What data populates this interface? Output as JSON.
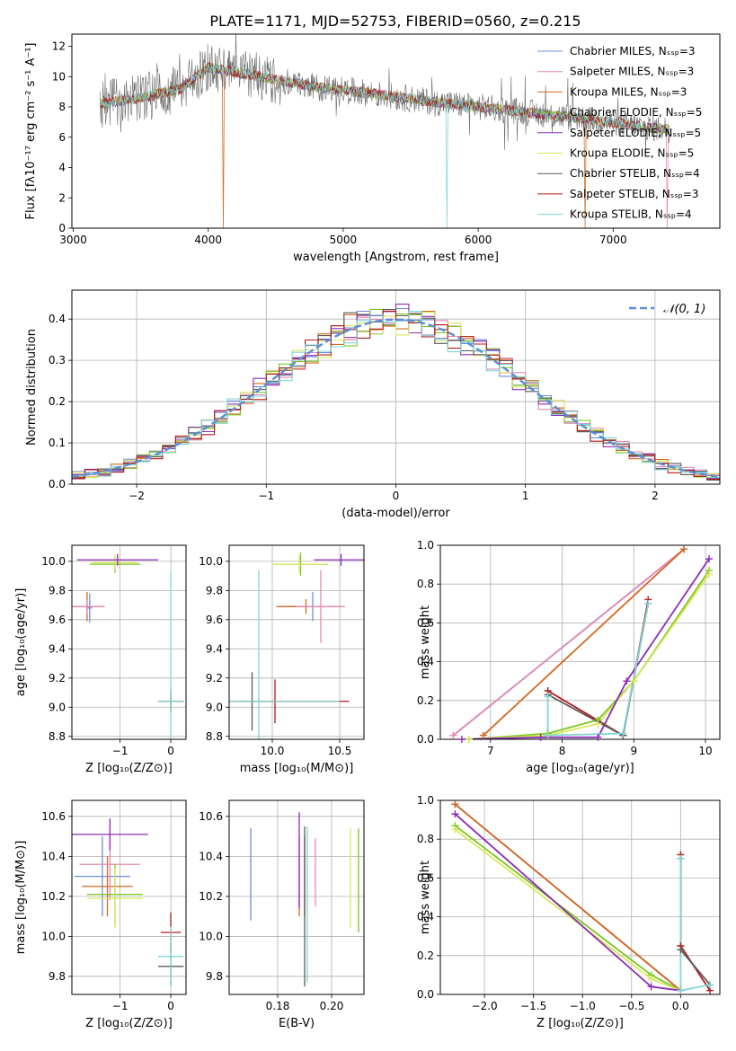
{
  "figure": {
    "title": "PLATE=1171, MJD=52753, FIBERID=0560, z=0.215"
  },
  "colors": {
    "chabrier_miles": "#6b8fe0",
    "salpeter_miles": "#e48ab6",
    "kroupa_miles": "#d2691e",
    "chabrier_elodie": "#7cc623",
    "salpeter_elodie": "#8e2cb5",
    "kroupa_elodie": "#d9e85c",
    "chabrier_stelib": "#5c5c5c",
    "salpeter_stelib": "#b01a1a",
    "kroupa_stelib": "#7fd6d6",
    "normal_curve": "#5b8fd6",
    "grid": "#b0b0b0"
  },
  "chart_data": [
    {
      "id": "spectrum",
      "type": "line",
      "xlabel": "wavelength [Angstrom, rest frame]",
      "ylabel": "Flux [fλ10⁻¹⁷ erg cm⁻² s⁻¹ A⁻¹]",
      "xlim": [
        2990,
        7790
      ],
      "ylim": [
        0,
        12.8
      ],
      "xticks": [
        3000,
        4000,
        5000,
        6000,
        7000
      ],
      "yticks": [
        0,
        2,
        4,
        6,
        8,
        10,
        12
      ],
      "grid": false,
      "legend_position": "top-right",
      "data_range": [
        3200,
        7420
      ],
      "continuum": [
        [
          3200,
          8.2
        ],
        [
          3500,
          8.6
        ],
        [
          3800,
          9.2
        ],
        [
          4000,
          10.6
        ],
        [
          4200,
          10.3
        ],
        [
          4500,
          9.8
        ],
        [
          4800,
          9.3
        ],
        [
          5200,
          8.9
        ],
        [
          5600,
          8.4
        ],
        [
          6000,
          8.0
        ],
        [
          6400,
          7.6
        ],
        [
          6800,
          7.2
        ],
        [
          7200,
          6.7
        ],
        [
          7420,
          6.5
        ]
      ],
      "series": [
        {
          "name": "Chabrier MILES, Nₛₛₚ=3",
          "color_key": "chabrier_miles",
          "drops": []
        },
        {
          "name": "Salpeter MILES, Nₛₛₚ=3",
          "color_key": "salpeter_miles",
          "drops": [
            3540,
            7400
          ]
        },
        {
          "name": "Kroupa MILES, Nₛₛₚ=3",
          "color_key": "kroupa_miles",
          "drops": [
            3540,
            4110,
            6790
          ]
        },
        {
          "name": "Chabrier ELODIE, Nₛₛₚ=5",
          "color_key": "chabrier_elodie",
          "drops": []
        },
        {
          "name": "Salpeter ELODIE, Nₛₛₚ=5",
          "color_key": "salpeter_elodie",
          "drops": []
        },
        {
          "name": "Kroupa ELODIE, Nₛₛₚ=5",
          "color_key": "kroupa_elodie",
          "drops": [
            3900
          ]
        },
        {
          "name": "Chabrier STELIB, Nₛₛₚ=4",
          "color_key": "chabrier_stelib",
          "drops": [],
          "noisy": true
        },
        {
          "name": "Salpeter STELIB, Nₛₛₚ=3",
          "color_key": "salpeter_stelib",
          "drops": []
        },
        {
          "name": "Kroupa STELIB, Nₛₛₚ=4",
          "color_key": "kroupa_stelib",
          "drops": [
            5770
          ]
        }
      ]
    },
    {
      "id": "residuals",
      "type": "area",
      "xlabel": "(data-model)/error",
      "ylabel": "Normed distribution",
      "xlim": [
        -2.5,
        2.5
      ],
      "ylim": [
        0,
        0.47
      ],
      "xticks": [
        -2,
        -1,
        0,
        1,
        2
      ],
      "yticks": [
        0.0,
        0.1,
        0.2,
        0.3,
        0.4
      ],
      "grid": true,
      "legend_position": "top-right",
      "legend_label": "𝒩(0, 1)",
      "bin_width": 0.1
    },
    {
      "id": "age_vs_z",
      "type": "scatter",
      "xlabel": "Z [log₁₀(Z/Z⊙)]",
      "ylabel": "age  [log₁₀(age/yr)]",
      "xlim": [
        -1.95,
        0.3
      ],
      "ylim": [
        8.78,
        10.11
      ],
      "xticks": [
        -1,
        0
      ],
      "yticks": [
        8.8,
        9.0,
        9.2,
        9.4,
        9.6,
        9.8,
        10.0
      ],
      "grid": true,
      "points": [
        {
          "color_key": "chabrier_miles",
          "x": -1.6,
          "xerr": 0.05,
          "y": 9.68,
          "yerr": 0.1
        },
        {
          "color_key": "kroupa_miles",
          "x": -1.65,
          "xerr": 0.3,
          "y": 9.69,
          "yerr": 0.1
        },
        {
          "color_key": "salpeter_miles",
          "x": -1.65,
          "xerr": 0.35,
          "y": 9.69,
          "yerr": 0.05
        },
        {
          "color_key": "chabrier_elodie",
          "x": -1.1,
          "xerr": 0.5,
          "y": 9.98,
          "yerr": 0.06
        },
        {
          "color_key": "kroupa_elodie",
          "x": -1.1,
          "xerr": 0.45,
          "y": 9.99,
          "yerr": 0.05
        },
        {
          "color_key": "salpeter_elodie",
          "x": -1.05,
          "xerr": 0.8,
          "y": 10.01,
          "yerr": 0.04
        },
        {
          "color_key": "salpeter_stelib",
          "x": 0.0,
          "xerr": 0.25,
          "y": 9.04,
          "yerr": 0.05
        },
        {
          "color_key": "chabrier_stelib",
          "x": 0.0,
          "xerr": 0.25,
          "y": 9.04,
          "yerr": 0.08
        },
        {
          "color_key": "kroupa_stelib",
          "x": 0.0,
          "xerr": 0.25,
          "y": 9.04,
          "yerr": 0.88
        }
      ]
    },
    {
      "id": "age_vs_mass",
      "type": "scatter",
      "xlabel": "mass [log₁₀(M/M⊙)]",
      "ylabel": "",
      "xlim": [
        9.68,
        10.68
      ],
      "ylim": [
        8.78,
        10.11
      ],
      "xticks": [
        10.0,
        10.5
      ],
      "yticks": [
        8.8,
        9.0,
        9.2,
        9.4,
        9.6,
        9.8,
        10.0
      ],
      "grid": true,
      "points": [
        {
          "color_key": "chabrier_miles",
          "x": 10.3,
          "xerr": 0.22,
          "y": 9.69,
          "yerr": 0.1
        },
        {
          "color_key": "kroupa_miles",
          "x": 10.25,
          "xerr": 0.22,
          "y": 9.69,
          "yerr": 0.05
        },
        {
          "color_key": "salpeter_miles",
          "x": 10.36,
          "xerr": 0.18,
          "y": 9.69,
          "yerr": 0.25
        },
        {
          "color_key": "chabrier_elodie",
          "x": 10.21,
          "xerr": 0.2,
          "y": 9.98,
          "yerr": 0.08
        },
        {
          "color_key": "kroupa_elodie",
          "x": 10.2,
          "xerr": 0.2,
          "y": 9.98,
          "yerr": 0.06
        },
        {
          "color_key": "salpeter_elodie",
          "x": 10.51,
          "xerr": 0.2,
          "y": 10.01,
          "yerr": 0.04
        },
        {
          "color_key": "salpeter_stelib",
          "x": 10.02,
          "xerr": 0.55,
          "y": 9.04,
          "yerr": 0.15
        },
        {
          "color_key": "chabrier_stelib",
          "x": 9.85,
          "xerr": 0.1,
          "y": 9.04,
          "yerr": 0.2
        },
        {
          "color_key": "kroupa_stelib",
          "x": 9.9,
          "xerr": 0.6,
          "y": 9.04,
          "yerr": 0.9
        }
      ]
    },
    {
      "id": "massweight_vs_age",
      "type": "line",
      "xlabel": "age  [log₁₀(age/yr)]",
      "ylabel": "mass weight",
      "xlim": [
        6.3,
        10.2
      ],
      "ylim": [
        0,
        1.0
      ],
      "xticks": [
        7,
        8,
        9,
        10
      ],
      "yticks": [
        0.0,
        0.2,
        0.4,
        0.6,
        0.8,
        1.0
      ],
      "grid": true,
      "series": [
        {
          "color_key": "chabrier_miles",
          "x": [
            6.48,
            9.7
          ],
          "y": [
            0.02,
            0.98
          ]
        },
        {
          "color_key": "salpeter_miles",
          "x": [
            6.48,
            9.7
          ],
          "y": [
            0.02,
            0.98
          ]
        },
        {
          "color_key": "kroupa_miles",
          "x": [
            6.9,
            9.7
          ],
          "y": [
            0.02,
            0.98
          ]
        },
        {
          "color_key": "chabrier_elodie",
          "x": [
            6.7,
            7.8,
            8.5,
            9.0,
            10.05
          ],
          "y": [
            0.0,
            0.03,
            0.1,
            0.3,
            0.87
          ]
        },
        {
          "color_key": "kroupa_elodie",
          "x": [
            6.7,
            7.8,
            8.5,
            9.0,
            10.05
          ],
          "y": [
            0.0,
            0.02,
            0.08,
            0.3,
            0.85
          ]
        },
        {
          "color_key": "salpeter_elodie",
          "x": [
            6.6,
            7.7,
            8.5,
            8.9,
            10.05
          ],
          "y": [
            0.0,
            0.01,
            0.01,
            0.3,
            0.93
          ]
        },
        {
          "color_key": "salpeter_stelib",
          "x": [
            7.8,
            8.85,
            9.2
          ],
          "y": [
            0.25,
            0.02,
            0.72
          ]
        },
        {
          "color_key": "chabrier_stelib",
          "x": [
            7.8,
            8.85,
            9.2
          ],
          "y": [
            0.23,
            0.02,
            0.7
          ]
        },
        {
          "color_key": "kroupa_stelib",
          "x": [
            7.8,
            7.8,
            8.85,
            9.2
          ],
          "y": [
            0.22,
            0.02,
            0.03,
            0.7
          ]
        }
      ]
    },
    {
      "id": "mass_vs_z",
      "type": "scatter",
      "xlabel": "Z [log₁₀(Z/Z⊙)]",
      "ylabel": "mass [log₁₀(M/M⊙)]",
      "xlim": [
        -1.95,
        0.3
      ],
      "ylim": [
        9.71,
        10.68
      ],
      "xticks": [
        -1,
        0
      ],
      "yticks": [
        9.8,
        10.0,
        10.2,
        10.4,
        10.6
      ],
      "grid": true,
      "points": [
        {
          "color_key": "chabrier_miles",
          "x": -1.35,
          "xerr": 0.55,
          "y": 10.3,
          "yerr": 0.2
        },
        {
          "color_key": "kroupa_miles",
          "x": -1.25,
          "xerr": 0.5,
          "y": 10.25,
          "yerr": 0.15
        },
        {
          "color_key": "salpeter_miles",
          "x": -1.2,
          "xerr": 0.6,
          "y": 10.36,
          "yerr": 0.18
        },
        {
          "color_key": "chabrier_elodie",
          "x": -1.1,
          "xerr": 0.55,
          "y": 10.21,
          "yerr": 0.15
        },
        {
          "color_key": "kroupa_elodie",
          "x": -1.1,
          "xerr": 0.55,
          "y": 10.19,
          "yerr": 0.15
        },
        {
          "color_key": "salpeter_elodie",
          "x": -1.2,
          "xerr": 0.75,
          "y": 10.51,
          "yerr": 0.08
        },
        {
          "color_key": "salpeter_stelib",
          "x": 0.0,
          "xerr": 0.2,
          "y": 10.02,
          "yerr": 0.1
        },
        {
          "color_key": "chabrier_stelib",
          "x": 0.0,
          "xerr": 0.25,
          "y": 9.85,
          "yerr": 0.1
        },
        {
          "color_key": "kroupa_stelib",
          "x": 0.0,
          "xerr": 0.25,
          "y": 9.9,
          "yerr": 0.15
        }
      ]
    },
    {
      "id": "mass_vs_ebv",
      "type": "scatter",
      "xlabel": "E(B-V)",
      "ylabel": "",
      "xlim": [
        0.162,
        0.212
      ],
      "ylim": [
        9.71,
        10.68
      ],
      "xticks": [
        0.18,
        0.2
      ],
      "yticks": [
        9.8,
        10.0,
        10.2,
        10.4,
        10.6
      ],
      "grid": true,
      "points": [
        {
          "color_key": "chabrier_miles",
          "x": 0.17,
          "y": 10.31,
          "yerr": 0.23
        },
        {
          "color_key": "kroupa_miles",
          "x": 0.188,
          "y": 10.3,
          "yerr": 0.2
        },
        {
          "color_key": "salpeter_miles",
          "x": 0.194,
          "y": 10.32,
          "yerr": 0.17
        },
        {
          "color_key": "chabrier_elodie",
          "x": 0.21,
          "y": 10.28,
          "yerr": 0.26
        },
        {
          "color_key": "kroupa_elodie",
          "x": 0.207,
          "y": 10.29,
          "yerr": 0.25
        },
        {
          "color_key": "salpeter_elodie",
          "x": 0.188,
          "y": 10.38,
          "yerr": 0.24
        },
        {
          "color_key": "salpeter_stelib",
          "x": 0.19,
          "y": 10.3,
          "yerr": 0.2
        },
        {
          "color_key": "chabrier_stelib",
          "x": 0.19,
          "y": 10.15,
          "yerr": 0.4
        },
        {
          "color_key": "kroupa_stelib",
          "x": 0.191,
          "y": 10.16,
          "yerr": 0.39
        }
      ]
    },
    {
      "id": "massweight_vs_z",
      "type": "line",
      "xlabel": "Z [log₁₀(Z/Z⊙)]",
      "ylabel": "mass weight",
      "xlim": [
        -2.45,
        0.4
      ],
      "ylim": [
        0,
        1.0
      ],
      "xticks": [
        -2.0,
        -1.5,
        -1.0,
        -0.5,
        0.0
      ],
      "yticks": [
        0.0,
        0.2,
        0.4,
        0.6,
        0.8,
        1.0
      ],
      "grid": true,
      "series": [
        {
          "color_key": "chabrier_miles",
          "x": [
            -2.3,
            0.0
          ],
          "y": [
            0.98,
            0.02
          ]
        },
        {
          "color_key": "salpeter_miles",
          "x": [
            -2.3,
            0.0
          ],
          "y": [
            0.98,
            0.02
          ]
        },
        {
          "color_key": "kroupa_miles",
          "x": [
            -2.3,
            0.0
          ],
          "y": [
            0.98,
            0.02
          ]
        },
        {
          "color_key": "chabrier_elodie",
          "x": [
            -2.3,
            -0.3,
            0.0
          ],
          "y": [
            0.87,
            0.1,
            0.02
          ]
        },
        {
          "color_key": "kroupa_elodie",
          "x": [
            -2.3,
            -0.3,
            0.0
          ],
          "y": [
            0.85,
            0.08,
            0.02
          ]
        },
        {
          "color_key": "salpeter_elodie",
          "x": [
            -2.3,
            -0.3,
            0.0
          ],
          "y": [
            0.93,
            0.04,
            0.02
          ]
        },
        {
          "color_key": "salpeter_stelib",
          "x": [
            0.0,
            0.0,
            0.3
          ],
          "y": [
            0.72,
            0.25,
            0.02
          ]
        },
        {
          "color_key": "chabrier_stelib",
          "x": [
            0.0,
            0.0,
            0.3
          ],
          "y": [
            0.7,
            0.23,
            0.05
          ]
        },
        {
          "color_key": "kroupa_stelib",
          "x": [
            0.0,
            0.0,
            0.3
          ],
          "y": [
            0.7,
            0.02,
            0.05
          ]
        }
      ]
    }
  ]
}
